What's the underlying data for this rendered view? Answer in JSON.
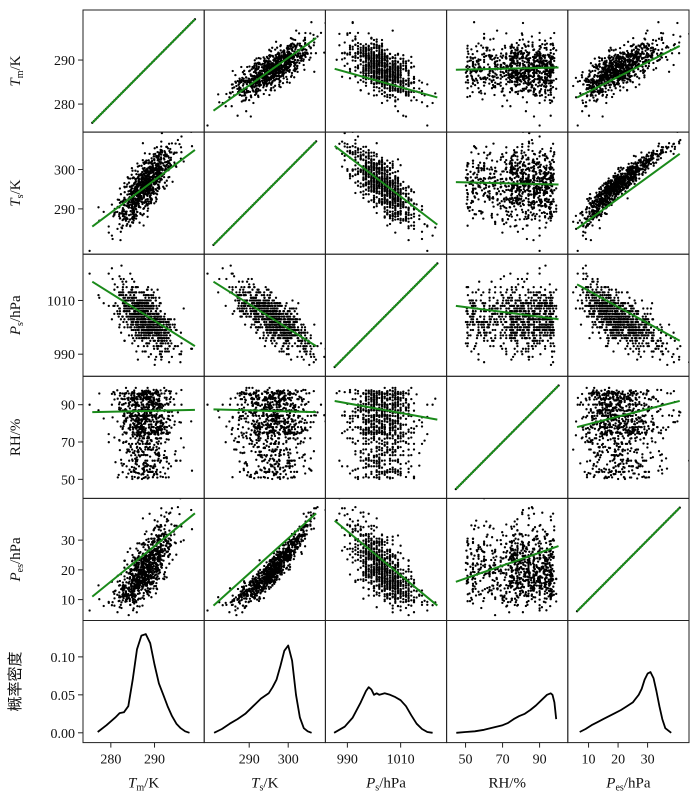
{
  "chart_data": {
    "type": "scatter-matrix",
    "variables": [
      {
        "key": "Tm",
        "label_main": "T",
        "label_sub": "m",
        "label_rest": "/K",
        "range": [
          275,
          300
        ],
        "ticks": [
          280,
          290
        ]
      },
      {
        "key": "Ts",
        "label_main": "T",
        "label_sub": "s",
        "label_rest": "/K",
        "range": [
          280,
          308
        ],
        "ticks": [
          290,
          300
        ]
      },
      {
        "key": "Ps",
        "label_main": "P",
        "label_sub": "s",
        "label_rest": "/hPa",
        "range": [
          984,
          1025
        ],
        "ticks": [
          990,
          1010
        ]
      },
      {
        "key": "RH",
        "label_main": "RH/%",
        "label_sub": "",
        "label_rest": "",
        "range": [
          43,
          102
        ],
        "ticks": [
          50,
          70,
          90
        ]
      },
      {
        "key": "Pes",
        "label_main": "P",
        "label_sub": "es",
        "label_rest": "/hPa",
        "range": [
          5,
          42
        ],
        "ticks": [
          10,
          20,
          30
        ]
      }
    ],
    "y_tick_rows": [
      [
        280,
        290
      ],
      [
        290,
        300
      ],
      [
        990,
        1010
      ],
      [
        50,
        70,
        90
      ],
      [
        10,
        20,
        30
      ]
    ],
    "x_tick_cols": [
      [
        280,
        290
      ],
      [
        290,
        300
      ],
      [
        990,
        1010
      ],
      [
        50,
        70,
        90
      ],
      [
        10,
        20,
        30
      ]
    ],
    "density_row": {
      "ylabel": "概率密度",
      "ylim": [
        -0.005,
        0.14
      ],
      "yticks": [
        0.0,
        0.05,
        0.1
      ],
      "ytick_labels": [
        "0.00",
        "0.05",
        "0.10"
      ],
      "curves": [
        {
          "x": [
            277,
            279,
            281,
            282,
            283,
            284,
            285,
            286,
            287,
            288,
            289,
            290,
            291,
            292,
            293,
            294,
            295,
            296,
            297,
            298
          ],
          "y": [
            0.001,
            0.01,
            0.02,
            0.026,
            0.027,
            0.035,
            0.07,
            0.11,
            0.128,
            0.13,
            0.118,
            0.09,
            0.065,
            0.05,
            0.035,
            0.022,
            0.012,
            0.006,
            0.002,
            0.0
          ]
        },
        {
          "x": [
            281,
            283,
            285,
            287,
            289,
            291,
            293,
            295,
            296,
            297,
            298,
            299,
            300,
            301,
            302,
            303,
            304,
            305,
            306
          ],
          "y": [
            0.0,
            0.005,
            0.012,
            0.018,
            0.025,
            0.035,
            0.045,
            0.052,
            0.06,
            0.07,
            0.088,
            0.108,
            0.115,
            0.095,
            0.05,
            0.02,
            0.006,
            0.002,
            0.0
          ]
        },
        {
          "x": [
            985,
            989,
            992,
            995,
            997,
            998,
            999,
            1000,
            1001,
            1002,
            1004,
            1006,
            1008,
            1010,
            1012,
            1014,
            1016,
            1018,
            1020,
            1022
          ],
          "y": [
            0.0,
            0.008,
            0.02,
            0.04,
            0.055,
            0.06,
            0.057,
            0.05,
            0.052,
            0.05,
            0.052,
            0.05,
            0.047,
            0.043,
            0.035,
            0.023,
            0.012,
            0.005,
            0.001,
            0.0
          ]
        },
        {
          "x": [
            45,
            50,
            55,
            60,
            65,
            70,
            73,
            76,
            79,
            82,
            85,
            88,
            91,
            94,
            96,
            97,
            98,
            99
          ],
          "y": [
            0.0,
            0.001,
            0.002,
            0.004,
            0.007,
            0.01,
            0.013,
            0.018,
            0.022,
            0.025,
            0.03,
            0.036,
            0.043,
            0.05,
            0.052,
            0.05,
            0.04,
            0.018
          ]
        },
        {
          "x": [
            7,
            9,
            11,
            13,
            15,
            17,
            19,
            21,
            23,
            25,
            27,
            28,
            29,
            30,
            31,
            32,
            33,
            34,
            35,
            36,
            38
          ],
          "y": [
            0.001,
            0.005,
            0.01,
            0.014,
            0.018,
            0.022,
            0.026,
            0.03,
            0.035,
            0.04,
            0.05,
            0.058,
            0.07,
            0.078,
            0.08,
            0.072,
            0.055,
            0.035,
            0.018,
            0.006,
            0.0
          ]
        }
      ]
    },
    "fit_lines": [
      [
        null,
        [
          278.5,
          295
        ],
        [
          288,
          281.5
        ],
        [
          287.8,
          288.3
        ],
        [
          281.5,
          293.2
        ]
      ],
      [
        [
          285.5,
          305
        ],
        null,
        [
          306,
          286
        ],
        [
          296.8,
          296.2
        ],
        [
          285,
          304
        ]
      ],
      [
        [
          1017,
          993
        ],
        [
          1017,
          993
        ],
        null,
        [
          1008,
          1003
        ],
        [
          1016,
          995
        ]
      ],
      [
        [
          86,
          87.2
        ],
        [
          87.5,
          86
        ],
        [
          92,
          82
        ],
        null,
        [
          78,
          92
        ]
      ],
      [
        [
          11,
          39
        ],
        [
          8,
          39
        ],
        [
          36.5,
          8
        ],
        [
          16,
          28
        ],
        null
      ]
    ],
    "colors": {
      "points": "#000000",
      "fit_line": "#1a8a1a",
      "diagonal": "#1a8a1a",
      "density": "#000000",
      "frame": "#222222"
    },
    "grid": false
  }
}
